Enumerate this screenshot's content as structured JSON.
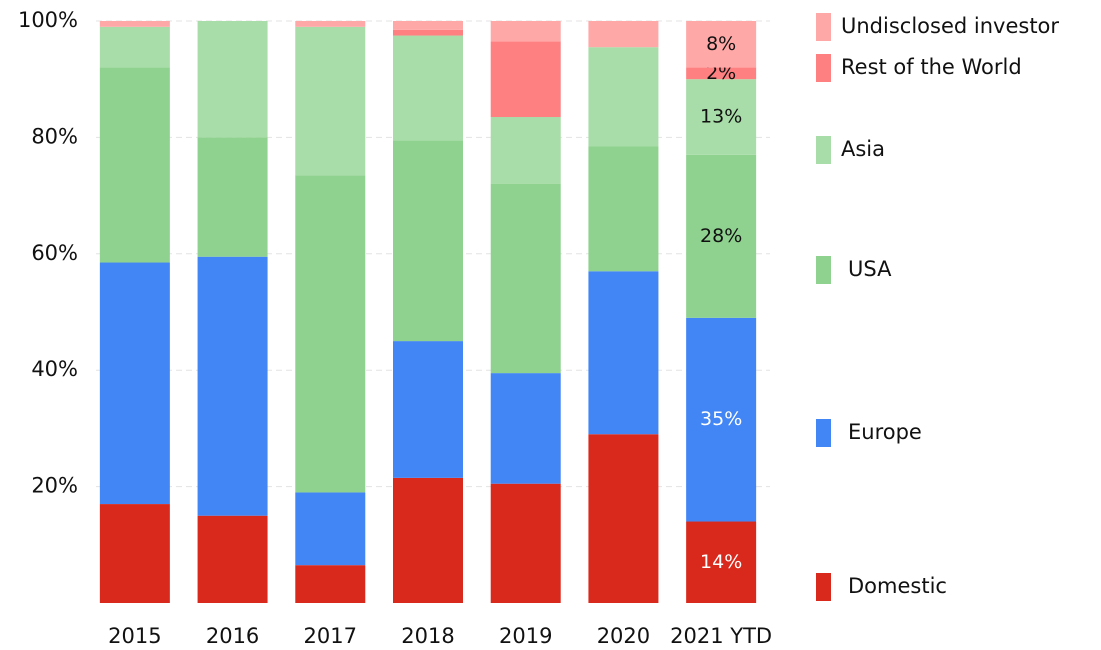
{
  "chart_data": {
    "type": "stacked_bar",
    "categories": [
      "2015",
      "2016",
      "2017",
      "2018",
      "2019",
      "2020",
      "2021 YTD"
    ],
    "series": [
      {
        "name": "Domestic",
        "color": "#d9291c",
        "values": [
          17,
          15,
          6.5,
          21.5,
          20.5,
          29,
          14
        ],
        "value_labels": [
          null,
          null,
          null,
          null,
          null,
          null,
          "14%"
        ]
      },
      {
        "name": "Europe",
        "color": "#4285f4",
        "values": [
          41.5,
          44.5,
          12.5,
          23.5,
          19,
          28,
          35
        ],
        "value_labels": [
          null,
          null,
          null,
          null,
          null,
          null,
          "35%"
        ]
      },
      {
        "name": "USA",
        "color": "#8fd18f",
        "values": [
          33.5,
          20.5,
          54.5,
          34.5,
          32.5,
          21.5,
          28
        ],
        "value_labels": [
          null,
          null,
          null,
          null,
          null,
          null,
          "28%"
        ]
      },
      {
        "name": "Asia",
        "color": "#a8dca8",
        "values": [
          7,
          20,
          25.5,
          18,
          11.5,
          17,
          13
        ],
        "value_labels": [
          null,
          null,
          null,
          null,
          null,
          null,
          "13%"
        ]
      },
      {
        "name": "Rest of the World",
        "color": "#ff8080",
        "values": [
          0,
          0,
          0,
          1,
          13,
          0,
          2
        ],
        "value_labels": [
          null,
          null,
          null,
          null,
          null,
          null,
          "2%"
        ]
      },
      {
        "name": "Undisclosed investor",
        "color": "#ffa8a8",
        "values": [
          1,
          0,
          1,
          1.5,
          3.5,
          4.5,
          8
        ],
        "value_labels": [
          null,
          null,
          null,
          null,
          null,
          null,
          "8%"
        ]
      }
    ],
    "ylim": [
      0,
      100
    ],
    "yticks": [
      {
        "value": 20,
        "label": "20%"
      },
      {
        "value": 40,
        "label": "40%"
      },
      {
        "value": 60,
        "label": "60%"
      },
      {
        "value": 80,
        "label": "80%"
      },
      {
        "value": 100,
        "label": "100%"
      }
    ],
    "grid": true,
    "legend": "right"
  }
}
